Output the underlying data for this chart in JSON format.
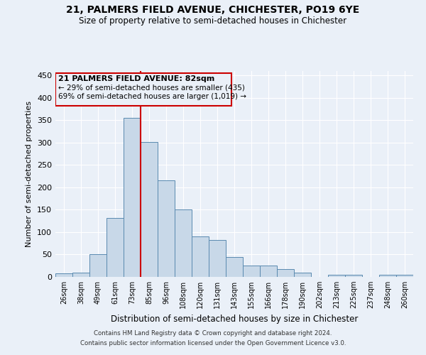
{
  "title1": "21, PALMERS FIELD AVENUE, CHICHESTER, PO19 6YE",
  "title2": "Size of property relative to semi-detached houses in Chichester",
  "xlabel": "Distribution of semi-detached houses by size in Chichester",
  "ylabel": "Number of semi-detached properties",
  "footer1": "Contains HM Land Registry data © Crown copyright and database right 2024.",
  "footer2": "Contains public sector information licensed under the Open Government Licence v3.0.",
  "annotation_title": "21 PALMERS FIELD AVENUE: 82sqm",
  "annotation_line1": "← 29% of semi-detached houses are smaller (435)",
  "annotation_line2": "69% of semi-detached houses are larger (1,019) →",
  "bar_labels": [
    "26sqm",
    "38sqm",
    "49sqm",
    "61sqm",
    "73sqm",
    "85sqm",
    "96sqm",
    "108sqm",
    "120sqm",
    "131sqm",
    "143sqm",
    "155sqm",
    "166sqm",
    "178sqm",
    "190sqm",
    "202sqm",
    "213sqm",
    "225sqm",
    "237sqm",
    "248sqm",
    "260sqm"
  ],
  "bar_values": [
    8,
    10,
    50,
    132,
    355,
    301,
    215,
    150,
    90,
    83,
    45,
    25,
    25,
    18,
    10,
    0,
    5,
    5,
    0,
    5,
    5
  ],
  "bar_color": "#c8d8e8",
  "bar_edge_color": "#5a8ab0",
  "vline_x": 4.5,
  "vline_color": "#cc0000",
  "ylim": [
    0,
    460
  ],
  "yticks": [
    0,
    50,
    100,
    150,
    200,
    250,
    300,
    350,
    400,
    450
  ],
  "bg_color": "#eaf0f8",
  "grid_color": "#ffffff",
  "annotation_box_color": "#cc0000",
  "title1_fontsize": 10,
  "title2_fontsize": 9
}
